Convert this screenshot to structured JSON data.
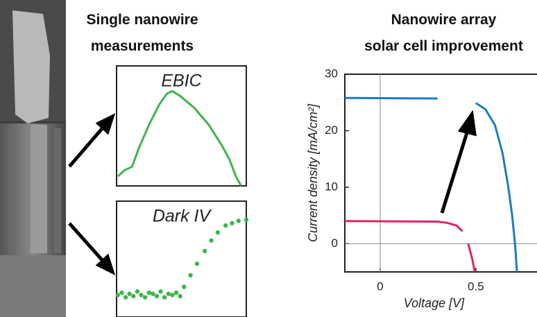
{
  "title": "Single nanowire\nmeasurements",
  "chart_data": [
    {
      "type": "line",
      "title": "EBIC",
      "color": "#3db54a",
      "x": [
        1,
        6,
        12,
        17,
        25,
        33,
        39,
        43,
        49,
        60,
        71,
        81,
        87,
        92,
        96
      ],
      "values": [
        8,
        13,
        16,
        31,
        51,
        68,
        77,
        79,
        75,
        65,
        51,
        34,
        22,
        8,
        0
      ],
      "xlim": [
        0,
        100
      ],
      "ylim": [
        0,
        100
      ]
    },
    {
      "type": "scatter",
      "title": "Dark IV",
      "color": "#3db54a",
      "x": [
        1,
        4,
        7,
        10,
        13,
        16,
        19,
        22,
        25,
        28,
        31,
        34,
        37,
        40,
        43,
        46,
        49,
        52,
        57,
        62,
        68,
        73,
        78,
        84,
        89,
        94,
        100
      ],
      "values": [
        19,
        21,
        17,
        20,
        18,
        22,
        19,
        17,
        21,
        20,
        18,
        22,
        17,
        20,
        19,
        21,
        18,
        26,
        36,
        46,
        57,
        66,
        73,
        79,
        81,
        83,
        84
      ],
      "xlim": [
        0,
        100
      ],
      "ylim": [
        0,
        100
      ]
    },
    {
      "type": "line",
      "title": "Nanowire array\nsolar cell improvement",
      "x_label": "Voltage [V]",
      "y_label": "Current density [mA/cm²]",
      "x": [
        -0.185,
        0.3,
        0.35,
        0.4,
        0.43,
        0.45,
        0.46,
        0.48,
        0.495,
        0.5,
        0.55,
        0.6,
        0.64,
        0.67,
        0.69,
        0.705,
        0.715
      ],
      "series": [
        {
          "color": "#1a7cc4",
          "values": [
            25.8,
            25.7,
            null,
            null,
            null,
            25.3,
            null,
            null,
            null,
            24.9,
            23.8,
            21,
            16,
            10,
            5,
            0,
            -5
          ]
        },
        {
          "color": "#e0245e",
          "values": [
            4.0,
            3.9,
            3.7,
            3.2,
            2.2,
            null,
            0,
            -2.5,
            -5,
            null,
            null,
            null,
            null,
            null,
            null,
            null,
            null
          ]
        }
      ],
      "xlim": [
        -0.185,
        0.82
      ],
      "ylim": [
        -5,
        30
      ],
      "xticks": [
        0,
        0.5
      ],
      "yticks": [
        0,
        10,
        20,
        30
      ]
    }
  ]
}
